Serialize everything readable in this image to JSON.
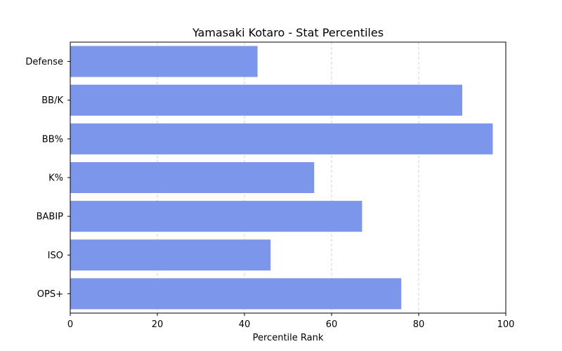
{
  "chart_data": {
    "type": "bar",
    "orientation": "horizontal",
    "title": "Yamasaki Kotaro - Stat Percentiles",
    "xlabel": "Percentile Rank",
    "ylabel": "",
    "categories": [
      "Defense",
      "BB/K",
      "BB%",
      "K%",
      "BABIP",
      "ISO",
      "OPS+"
    ],
    "values": [
      43,
      90,
      97,
      56,
      67,
      46,
      76
    ],
    "xlim": [
      0,
      100
    ],
    "xticks": [
      0,
      20,
      40,
      60,
      80,
      100
    ],
    "grid": {
      "x": true,
      "y": false,
      "style": "dashed"
    },
    "bar_color": "#7b96ea",
    "grid_color": "#c8c8c8"
  }
}
